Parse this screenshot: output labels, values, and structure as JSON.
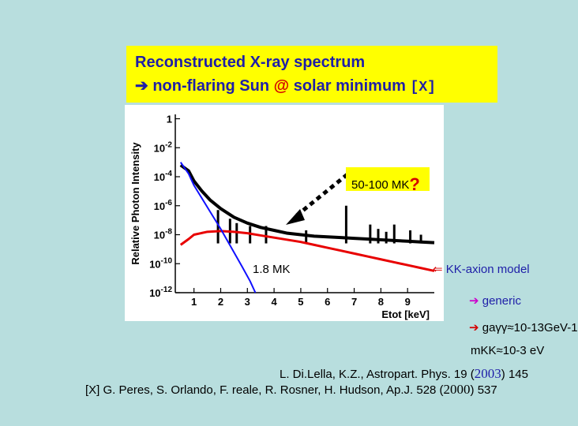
{
  "title": {
    "line1": "Reconstructed X-ray spectrum",
    "line2_arrow": "➔",
    "line2_text": " non-flaring Sun ",
    "line2_at": "@",
    "line2_text2": " solar minimum ",
    "line2_ref": "[X]"
  },
  "annotations": {
    "mk100_text": "50-100 MK",
    "mk100_q": "?",
    "mk18": "1.8 MK",
    "kk_arrow": "⇐",
    "kk_text": " KK-axion model",
    "generic_arrow": "➔",
    "generic_text": " generic",
    "gayy_arrow": "➔",
    "gayy_text": " gaγγ≈10-13GeV-1",
    "mkk_text": "mKK≈10-3 eV",
    "citation_pre": "L. Di.Lella, K.Z.,  Astropart. Phys. 19 (",
    "citation_year": "2003",
    "citation_post": ") 145",
    "ref_pre": "[X]  G. Peres, S. Orlando, F. reale, R. Rosner, H. Hudson,  Ap.J. 528 (",
    "ref_year": "2000",
    "ref_post": ") 537"
  },
  "colors": {
    "background": "#b8dede",
    "title_bg": "#ffff00",
    "title_text": "#1e1ea8",
    "red_series": "#e80000",
    "blue_series": "#1010ff"
  },
  "chart_data": {
    "type": "line",
    "title": "",
    "xlabel": "Etot [keV]",
    "ylabel": "Relative Photon Intensity",
    "xlim": [
      0.3,
      10.0
    ],
    "ylim_log10": [
      -12,
      0.3
    ],
    "x_ticks": [
      "1",
      "2",
      "3",
      "4",
      "5",
      "6",
      "7",
      "8",
      "9"
    ],
    "y_ticks": [
      {
        "base": "1",
        "exp": ""
      },
      {
        "base": "10",
        "exp": "-2"
      },
      {
        "base": "10",
        "exp": "-4"
      },
      {
        "base": "10",
        "exp": "-6"
      },
      {
        "base": "10",
        "exp": "-8"
      },
      {
        "base": "10",
        "exp": "-10"
      },
      {
        "base": "10",
        "exp": "-12"
      }
    ],
    "series": [
      {
        "name": "Reconstructed spectrum (black)",
        "color": "#000000",
        "x": [
          0.5,
          0.8,
          1.0,
          1.3,
          1.6,
          2.0,
          2.5,
          3.0,
          3.5,
          4.0,
          4.5,
          5.0,
          5.5,
          6.0,
          6.5,
          7.0,
          7.5,
          8.0,
          8.5,
          9.0,
          9.5,
          10.0
        ],
        "log10_y": [
          -3.2,
          -3.6,
          -4.3,
          -5.0,
          -5.6,
          -6.2,
          -6.8,
          -7.2,
          -7.5,
          -7.7,
          -7.9,
          -8.0,
          -8.1,
          -8.15,
          -8.2,
          -8.25,
          -8.3,
          -8.35,
          -8.4,
          -8.45,
          -8.5,
          -8.55
        ]
      },
      {
        "name": "KK-axion model (red)",
        "color": "#e80000",
        "x": [
          0.5,
          0.8,
          1.0,
          1.5,
          2.0,
          2.5,
          3.0,
          3.5,
          4.0,
          4.5,
          5.0,
          5.5,
          6.0,
          6.5,
          7.0,
          7.5,
          8.0,
          8.5,
          9.0,
          9.5,
          10.0
        ],
        "log10_y": [
          -8.7,
          -8.3,
          -8.0,
          -7.8,
          -7.75,
          -7.8,
          -7.9,
          -8.05,
          -8.2,
          -8.35,
          -8.5,
          -8.7,
          -8.9,
          -9.1,
          -9.3,
          -9.5,
          -9.7,
          -9.9,
          -10.1,
          -10.3,
          -10.5
        ]
      },
      {
        "name": "1.8 MK (blue)",
        "color": "#1010ff",
        "x": [
          0.5,
          0.8,
          1.0,
          1.3,
          1.6,
          2.0,
          2.4,
          2.8,
          3.1,
          3.3
        ],
        "log10_y": [
          -3.0,
          -3.8,
          -4.6,
          -5.5,
          -6.4,
          -7.6,
          -8.9,
          -10.2,
          -11.2,
          -12.0
        ]
      }
    ],
    "emission_lines": {
      "x": [
        1.9,
        2.35,
        2.6,
        3.1,
        3.7,
        5.2,
        6.7,
        7.6,
        7.9,
        8.2,
        8.5,
        9.1,
        9.5
      ],
      "log10_y": [
        -6.3,
        -6.9,
        -7.2,
        -7.4,
        -7.4,
        -7.7,
        -6.0,
        -7.3,
        -7.6,
        -7.8,
        -7.3,
        -7.7,
        -8.0
      ]
    }
  }
}
